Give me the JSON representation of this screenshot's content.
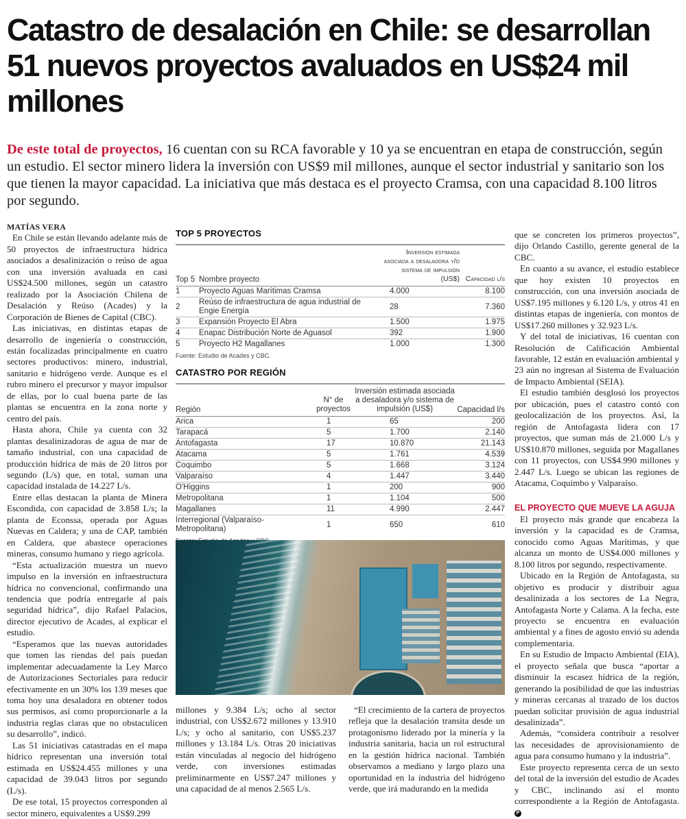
{
  "headline": "Catastro de desalación en Chile: se desarrollan 51 nuevos proyectos avaluados en US$24 mil millones",
  "lead": {
    "kicker": "De este total de proyectos,",
    "text": " 16 cuentan con su RCA favorable y 10 ya se encuentran en etapa de construcción, según un estudio. El sector minero lidera la inversión con US$9 mil millones, aunque el sector industrial y sanitario son los que tienen la mayor capacidad. La iniciativa que más destaca es el proyecto Cramsa, con una capacidad 8.100 litros por segundo."
  },
  "byline": "MATÍAS VERA",
  "left_column": [
    "En Chile se están llevando adelante más de 50 proyectos de infraestructura hídrica asociados a desalinización o reúso de agua con una inversión avaluada en casi US$24.500 millones, según un catastro realizado por la Asociación Chilena de Desalación y Reúso (Acades) y la Corporación de Bienes de Capital (CBC).",
    "Las iniciativas, en distintas etapas de desarrollo de ingeniería o construcción, están focalizadas principalmente en cuatro sectores productivos: minero, industrial, sanitario e hidrógeno verde. Aunque es el rubro minero el precursor y mayor impulsor de ellas, por lo cual buena parte de las plantas se encuentra en la zona norte y centro del país.",
    "Hasta ahora, Chile ya cuenta con 32 plantas desalinizadoras de agua de mar de tamaño industrial, con una capacidad de producción hídrica de más de 20 litros por segundo (L/s) que, en total, suman una capacidad instalada de 14.227 L/s.",
    "Entre ellas destacan la planta de Minera Escondida, con capacidad de 3.858 L/s; la planta de Econssa, operada por Aguas Nuevas en Caldera; y una de CAP, también en Caldera, que abastece operaciones mineras, consumo humano y riego agrícola.",
    "“Esta actualización muestra un nuevo impulso en la inversión en infraestructura hídrica no convencional, confirmando una tendencia que podría entregarle al país seguridad hídrica”, dijo Rafael Palacios, director ejecutivo de Acades, al explicar el estudio.",
    "“Esperamos que las nuevas autoridades que tomen las riendas del país puedan implementar adecuadamente la Ley Marco de Autorizaciones Sectoriales para reducir efectivamente en un 30% los 139 meses que toma hoy una desaladora en obtener todos sus permisos, así como proporcionarle a la industria reglas claras que no obstaculicen su desarrollo”, indicó.",
    "Las 51 iniciativas catastradas en el mapa hídrico representan una inversión total estimada en US$24.455 millones y una capacidad de 39.043 litros por segundo (L/s).",
    "De ese total, 15 proyectos corresponden al sector minero, equivalentes a US$9.299"
  ],
  "middle_sub1": [
    "millones y 9.384 L/s; ocho al sector industrial, con US$2.672 millones y 13.910 L/s; y ocho al sanitario, con US$5.237 millones y 13.184 L/s. Otras 20 iniciativas están vinculadas al negocio del hidrógeno verde, con inversiones estimadas preliminarmente en US$7.247 millones y una capacidad de al menos 2.565 L/s."
  ],
  "middle_sub2": [
    "“El crecimiento de la cartera de proyectos refleja que la desalación transita desde un protagonismo liderado por la minería y la industria sanitaria, hacia un rol estructural en la gestión hídrica nacional. También observamos a mediano y largo plazo una oportunidad en la industria del hidrógeno verde, que irá madurando en la medida"
  ],
  "right_column": [
    "que se concreten los primeros proyectos”, dijo Orlando Castillo, gerente general de la CBC.",
    "En cuanto a su avance, el estudio establece que hoy existen 10 proyectos en construcción, con una inversión asociada de US$7.195 millones y 6.120 L/s, y otros 41 en distintas etapas de ingeniería, con montos de US$17.260 millones y 32.923 L/s.",
    "Y del total de iniciativas, 16 cuentan con Resolución de Calificación Ambiental favorable, 12 están en evaluación ambiental y 23 aún no ingresan al Sistema de Evaluación de Impacto Ambiental (SEIA).",
    "El estudio también desglosó los proyectos por ubicación, pues el catastro contó con geolocalización de los proyectos. Así, la región de Antofagasta lidera con 17 proyectos, que suman más de 21.000 L/s y US$10.870 millones, seguida por Magallanes con 11 proyectos, con US$4.990 millones y 2.447 L/s. Luego se ubican las regiones de Atacama, Coquimbo y Valparaíso."
  ],
  "subhead": "EL PROYECTO QUE MUEVE LA AGUJA",
  "right_column_2": [
    "El proyecto más grande que encabeza la inversión y la capacidad es de Cramsa, conocido como Aguas Marítimas, y que alcanza un monto de US$4.000 millones y 8.100 litros por segundo, respectivamente.",
    "Ubicado en la Región de Antofagasta, su objetivo es producir y distribuir agua desalinizada a los sectores de La Negra, Antofagasta Norte y Calama. A la fecha, este proyecto se encuentra en evaluación ambiental y a fines de agosto envió su adenda complementaria.",
    "En su Estudio de Impacto Ambiental (EIA), el proyecto señala que busca “aportar a disminuir la escasez hídrica de la región, generando la posibilidad de que las industrias y mineras cercanas al trazado de los ductos puedan solicitar provisión de agua industrial desalinizada”.",
    "Además, “considera contribuir a resolver las necesidades de aprovisionamiento de agua para consumo humano y la industria”.",
    "Este proyecto representa cerca de un sexto del total de la inversión del estudio de Acades y CBC, inclinando así el monto correspondiente a la Región de Antofagasta."
  ],
  "end_mark": "P",
  "top5": {
    "title": "TOP 5 PROYECTOS",
    "headers": [
      "Top 5",
      "Nombre proyecto",
      "Inversión estimada asociada a desaladora y/o sistema de impulsión (US$)",
      "Capacidad l/s"
    ],
    "rows": [
      [
        "1",
        "Proyecto Aguas Marítimas Cramsa",
        "4.000",
        "8.100"
      ],
      [
        "2",
        "Reúso de infraestructura de agua industrial de Engie Energía",
        "28",
        "7.360"
      ],
      [
        "3",
        "Expansión Proyecto El Abra",
        "1.500",
        "1.975"
      ],
      [
        "4",
        "Enapac Distribución Norte de Aguasol",
        "392",
        "1.900"
      ],
      [
        "5",
        "Proyecto H2 Magallanes",
        "1.000",
        "1.300"
      ]
    ],
    "source": "Fuente: Estudio de Acades y CBC."
  },
  "region": {
    "title": "CATASTRO POR REGIÓN",
    "headers": [
      "Región",
      "N° de proyectos",
      "Inversión estimada asociada a desaladora y/o sistema de impulsión (US$)",
      "Capacidad l/s"
    ],
    "rows": [
      [
        "Arica",
        "1",
        "65",
        "200"
      ],
      [
        "Tarapacá",
        "5",
        "1.700",
        "2.140"
      ],
      [
        "Antofagasta",
        "17",
        "10.870",
        "21.143"
      ],
      [
        "Atacama",
        "5",
        "1.761",
        "4.539"
      ],
      [
        "Coquimbo",
        "5",
        "1.668",
        "3.124"
      ],
      [
        "Valparaíso",
        "4",
        "1.447",
        "3.440"
      ],
      [
        "O'Higgins",
        "1",
        "200",
        "900"
      ],
      [
        "Metropolitana",
        "1",
        "1.104",
        "500"
      ],
      [
        "Magallanes",
        "11",
        "4.990",
        "2.447"
      ],
      [
        "Interregional (Valparaíso- Metropolitana)",
        "1",
        "650",
        "610"
      ]
    ],
    "source": "Fuente: Estudio de Acades y CBC."
  },
  "colors": {
    "accent": "#c41a3c",
    "text": "#222222"
  }
}
